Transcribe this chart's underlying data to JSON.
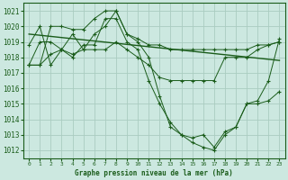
{
  "bg_color": "#cce8e0",
  "line_color": "#1a5c1a",
  "grid_color": "#aaccc0",
  "xlabel": "Graphe pression niveau de la mer (hPa)",
  "ylabel_values": [
    1012,
    1013,
    1014,
    1015,
    1016,
    1017,
    1018,
    1019,
    1020,
    1021
  ],
  "xlim": [
    -0.5,
    23.5
  ],
  "ylim": [
    1011.5,
    1021.5
  ],
  "x_ticks": [
    0,
    1,
    2,
    3,
    4,
    5,
    6,
    7,
    8,
    9,
    10,
    11,
    12,
    13,
    14,
    15,
    16,
    17,
    18,
    19,
    20,
    21,
    22,
    23
  ],
  "series": [
    [
      1017.5,
      1019.0,
      1019.0,
      1018.5,
      1018.2,
      1018.5,
      1018.5,
      1018.5,
      1019.0,
      1018.5,
      1018.0,
      1017.5,
      1016.7,
      1016.5,
      1016.5,
      1016.5,
      1016.5,
      1016.5,
      1018.0,
      1018.0,
      1018.0,
      1018.5,
      1018.8,
      1019.0
    ],
    [
      1018.8,
      1020.0,
      1017.5,
      1018.5,
      1019.5,
      1018.5,
      1019.5,
      1020.0,
      1021.0,
      1019.5,
      1019.0,
      1018.0,
      1015.5,
      1013.5,
      1013.0,
      1012.5,
      1012.2,
      1012.0,
      1013.0,
      1013.5,
      1015.0,
      1015.0,
      1015.2,
      1015.8
    ],
    [
      1017.5,
      1017.5,
      1018.2,
      1018.5,
      1018.0,
      1018.8,
      1018.8,
      1020.5,
      1020.5,
      1019.0,
      1018.5,
      1016.5,
      1015.0,
      1013.8,
      1013.0,
      1012.8,
      1013.0,
      1012.2,
      1013.2,
      1013.5,
      1015.0,
      1015.2,
      1016.5,
      1019.2
    ],
    [
      1017.5,
      1017.5,
      1020.0,
      1020.0,
      1019.8,
      1019.8,
      1020.5,
      1021.0,
      1021.0,
      1019.5,
      1019.2,
      1018.8,
      1018.8,
      1018.5,
      1018.5,
      1018.5,
      1018.5,
      1018.5,
      1018.5,
      1018.5,
      1018.5,
      1018.8,
      1018.8,
      1019.0
    ]
  ],
  "trend_x": [
    0,
    23
  ],
  "trend_y": [
    1019.5,
    1017.8
  ],
  "figsize": [
    3.2,
    2.0
  ],
  "dpi": 100
}
